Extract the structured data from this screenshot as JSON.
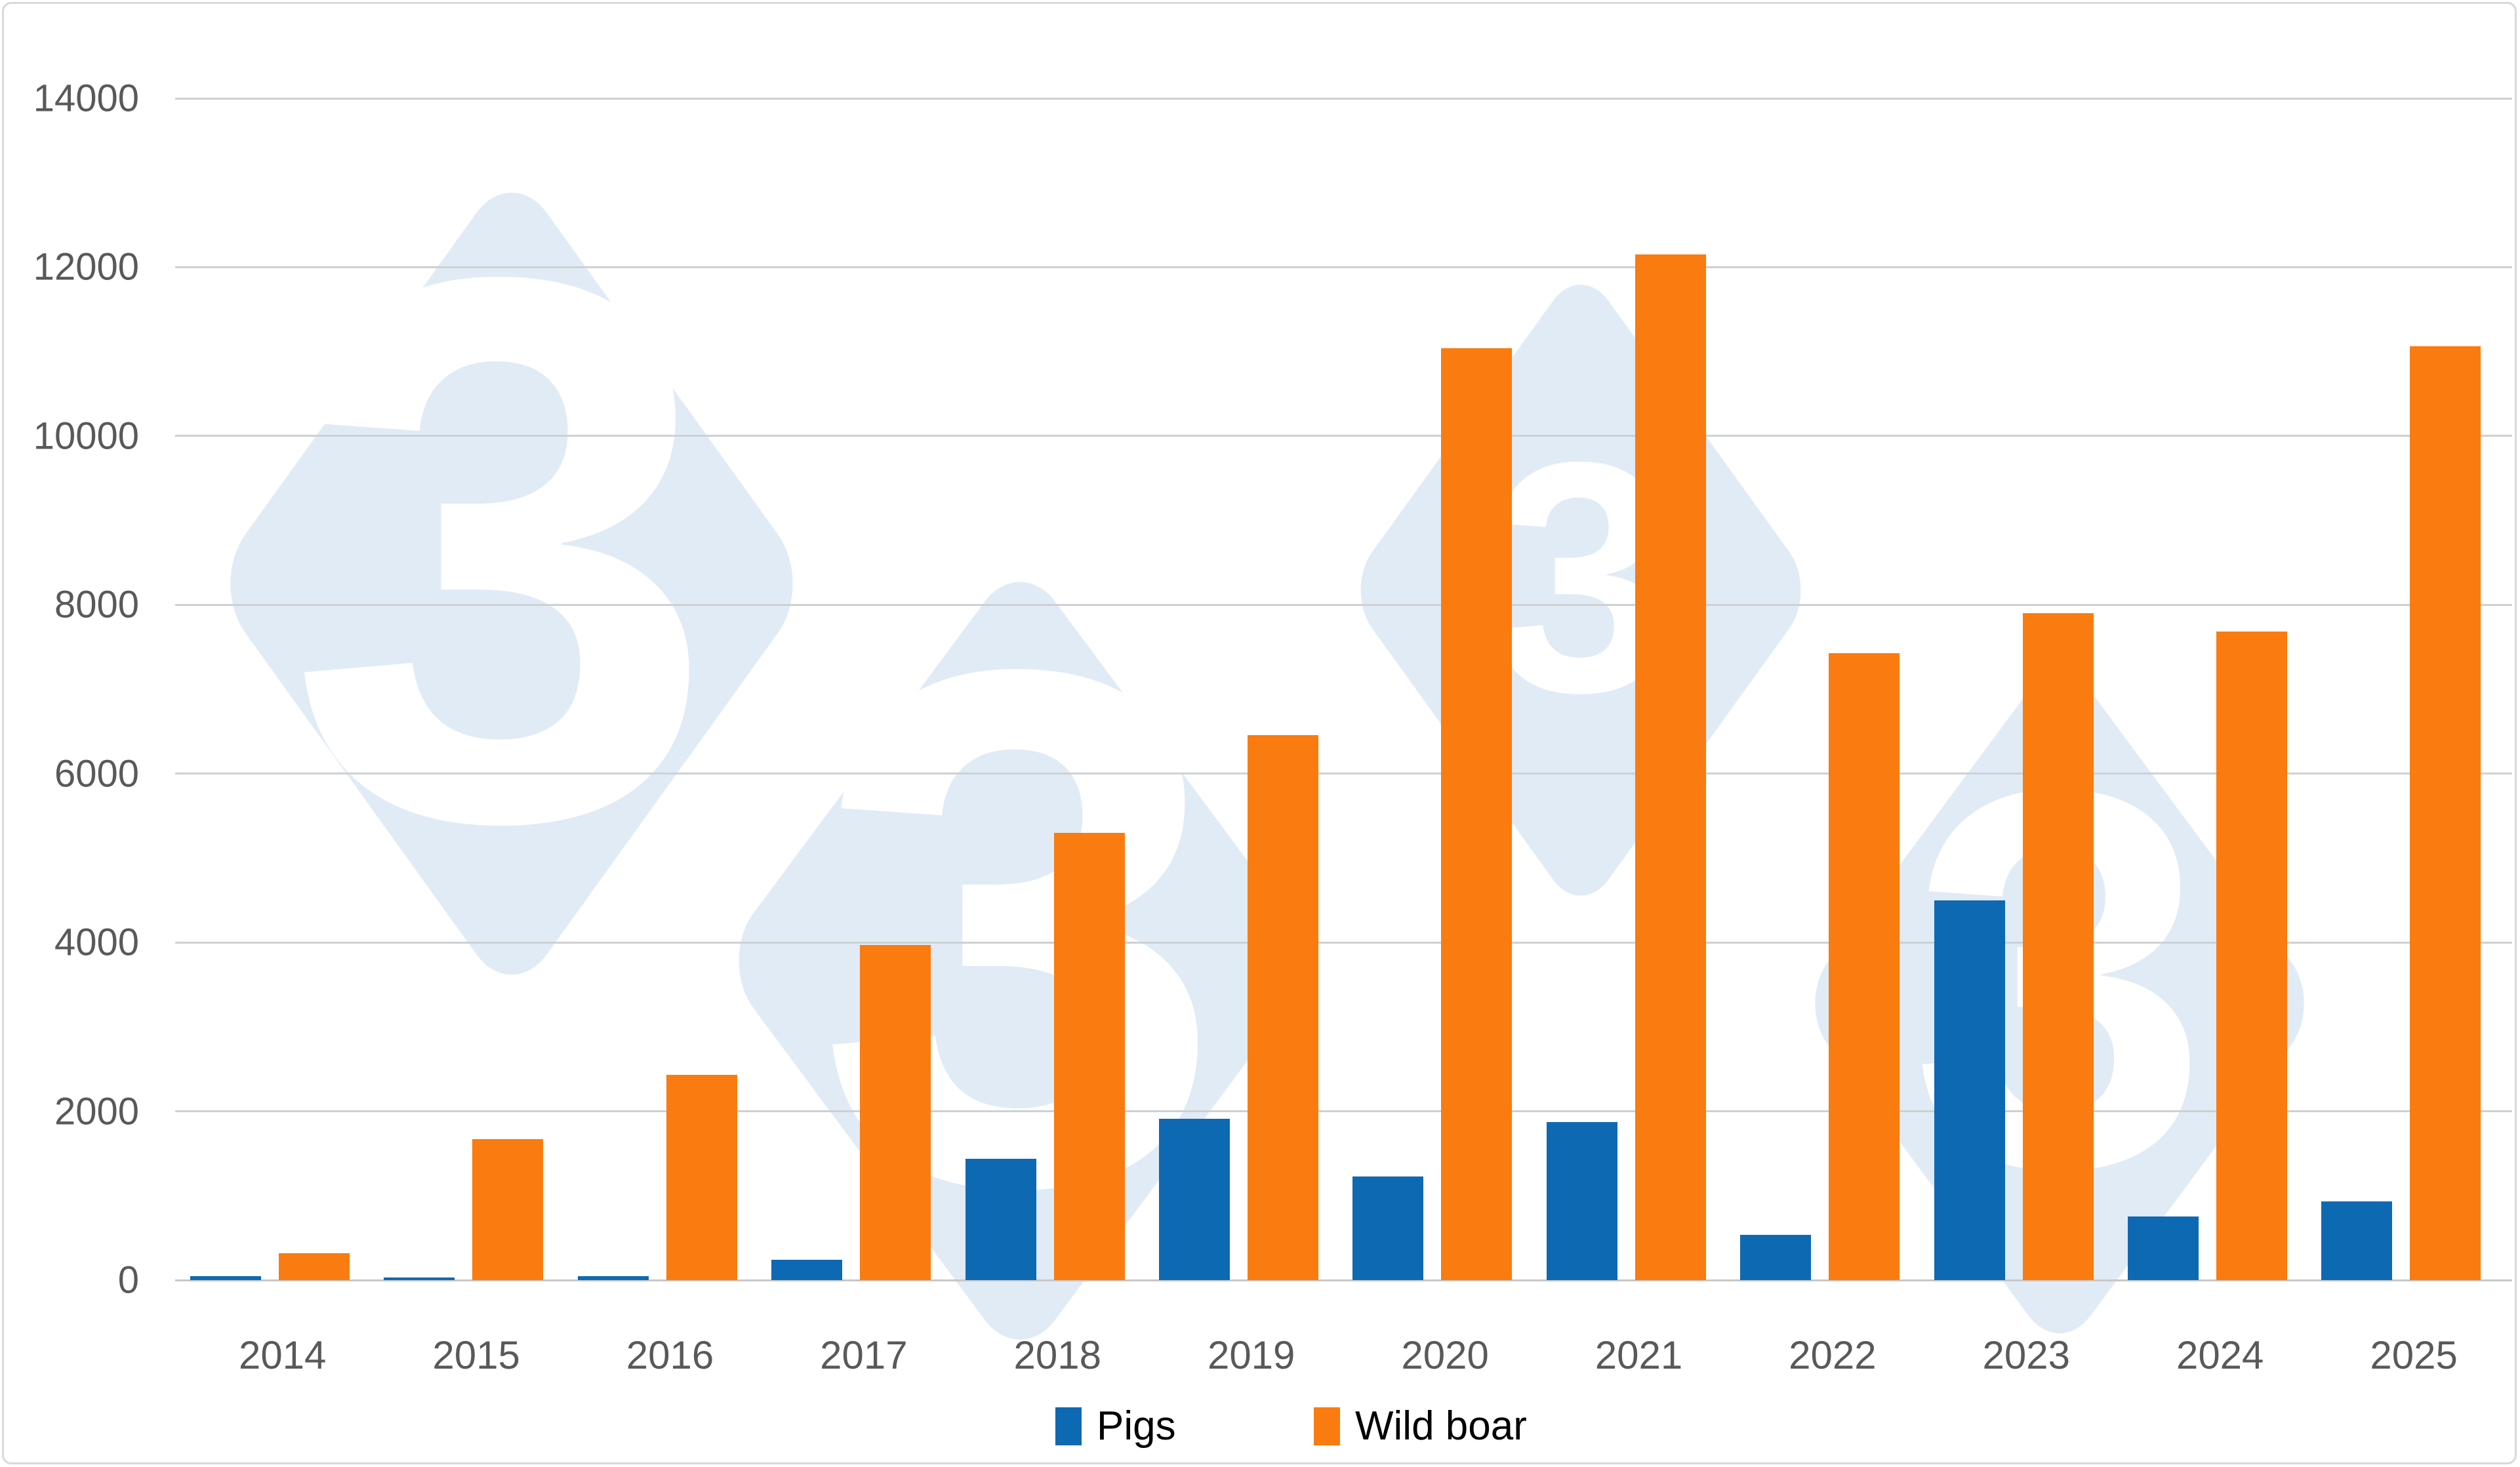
{
  "chart_data": {
    "type": "bar",
    "title": "",
    "categories": [
      "2014",
      "2015",
      "2016",
      "2017",
      "2018",
      "2019",
      "2020",
      "2021",
      "2022",
      "2023",
      "2024",
      "2025"
    ],
    "series": [
      {
        "name": "Pigs",
        "color": "#0e69b3",
        "values": [
          50,
          30,
          45,
          240,
          1440,
          1910,
          1230,
          1870,
          535,
          4500,
          750,
          930
        ]
      },
      {
        "name": "Wild boar",
        "color": "#fa7b10",
        "values": [
          315,
          1670,
          2430,
          3970,
          5300,
          6460,
          11040,
          12150,
          7430,
          7900,
          7680,
          11060
        ]
      }
    ],
    "xlabel": "",
    "ylabel": "",
    "ylim": [
      0,
      14000
    ],
    "yticks": [
      0,
      2000,
      4000,
      6000,
      8000,
      10000,
      12000,
      14000
    ],
    "ytick_labels": [
      "0",
      "2000",
      "4000",
      "6000",
      "8000",
      "10000",
      "12000",
      "14000"
    ],
    "grid": true,
    "legend_position": "bottom",
    "legend": [
      "Pigs",
      "Wild boar"
    ]
  },
  "watermark": {
    "glyph": "3",
    "diamond_color": "#e1ebf6",
    "glyph_color": "#ffffff"
  },
  "frame": {
    "border_color": "#d9d9d9",
    "background": "#ffffff"
  },
  "axis": {
    "label_color": "#595959",
    "grid_color": "#cdd1d4",
    "axis_line_color": "#c8c8c8"
  }
}
